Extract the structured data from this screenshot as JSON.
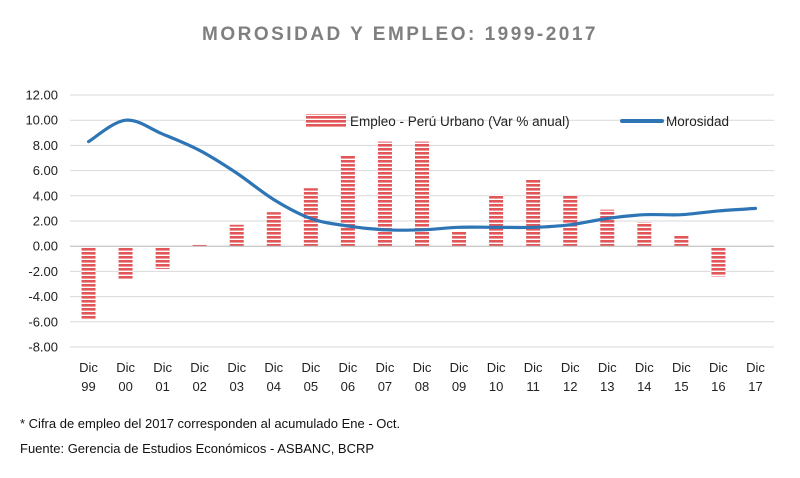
{
  "chart_data": {
    "type": "bar",
    "title": "MOROSIDAD Y EMPLEO: 1999-2017",
    "categories": [
      [
        "Dic",
        "99"
      ],
      [
        "Dic",
        "00"
      ],
      [
        "Dic",
        "01"
      ],
      [
        "Dic",
        "02"
      ],
      [
        "Dic",
        "03"
      ],
      [
        "Dic",
        "04"
      ],
      [
        "Dic",
        "05"
      ],
      [
        "Dic",
        "06"
      ],
      [
        "Dic",
        "07"
      ],
      [
        "Dic",
        "08"
      ],
      [
        "Dic",
        "09"
      ],
      [
        "Dic",
        "10"
      ],
      [
        "Dic",
        "11"
      ],
      [
        "Dic",
        "12"
      ],
      [
        "Dic",
        "13"
      ],
      [
        "Dic",
        "14"
      ],
      [
        "Dic",
        "15"
      ],
      [
        "Dic",
        "16"
      ],
      [
        "Dic",
        "17"
      ]
    ],
    "ylim": [
      -8,
      12
    ],
    "yticks": [
      "12.00",
      "10.00",
      "8.00",
      "6.00",
      "4.00",
      "2.00",
      "0.00",
      "-2.00",
      "-4.00",
      "-6.00",
      "-8.00"
    ],
    "ytick_values": [
      12,
      10,
      8,
      6,
      4,
      2,
      0,
      -2,
      -4,
      -6,
      -8
    ],
    "grid": true,
    "legend_position": "top-right",
    "series": [
      {
        "name": "Empleo - Perú Urbano (Var % anual)",
        "type": "bar",
        "color": "#e15759",
        "values": [
          -5.8,
          -2.6,
          -1.8,
          0.1,
          1.7,
          2.7,
          4.6,
          7.2,
          8.3,
          8.3,
          1.2,
          4.1,
          5.3,
          4.0,
          2.9,
          1.9,
          0.9,
          -2.4,
          null
        ]
      },
      {
        "name": "Morosidad",
        "type": "line",
        "color": "#2e75b6",
        "values": [
          8.3,
          10.0,
          8.9,
          7.6,
          5.8,
          3.7,
          2.2,
          1.6,
          1.3,
          1.3,
          1.5,
          1.5,
          1.5,
          1.7,
          2.2,
          2.5,
          2.5,
          2.8,
          3.0
        ]
      }
    ]
  },
  "footnotes": {
    "note": "* Cifra de empleo del 2017 corresponden al acumulado Ene - Oct.",
    "source": "Fuente: Gerencia de Estudios Económicos - ASBANC, BCRP"
  }
}
